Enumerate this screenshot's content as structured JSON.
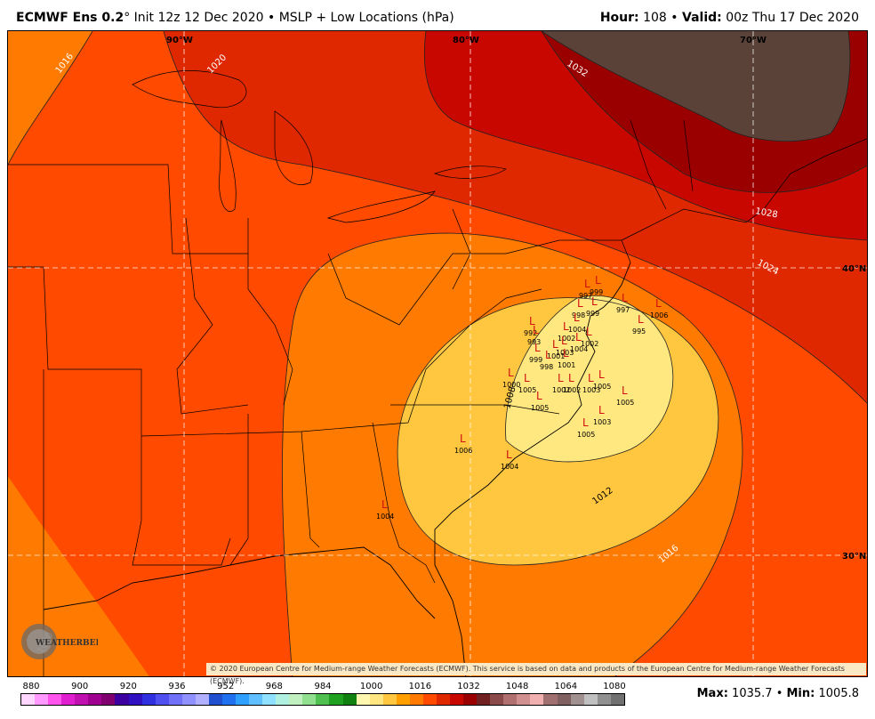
{
  "header": {
    "model": "ECMWF Ens 0.2",
    "degree": "°",
    "init_text": "Init 12z 12 Dec 2020",
    "sep": "•",
    "product": "MSLP + Low Locations (hPa)",
    "hour_label": "Hour:",
    "hour_value": "108",
    "valid_label": "Valid:",
    "valid_value": "00z Thu 17 Dec 2020"
  },
  "map": {
    "lon_labels": [
      "90°W",
      "80°W",
      "70°W"
    ],
    "lat_labels": [
      "40°N",
      "30°N"
    ],
    "isobar_labels": [
      "1016",
      "1020",
      "1032",
      "1028",
      "1024",
      "1012",
      "1008",
      "1016",
      "1020"
    ],
    "low_marker": "L",
    "lows": [
      {
        "value": "997"
      },
      {
        "value": "999"
      },
      {
        "value": "997"
      },
      {
        "value": "1006"
      },
      {
        "value": "995"
      },
      {
        "value": "998"
      },
      {
        "value": "999"
      },
      {
        "value": "992"
      },
      {
        "value": "993"
      },
      {
        "value": "1002"
      },
      {
        "value": "1001"
      },
      {
        "value": "1004"
      },
      {
        "value": "1003"
      },
      {
        "value": "999"
      },
      {
        "value": "998"
      },
      {
        "value": "1004"
      },
      {
        "value": "1001"
      },
      {
        "value": "1002"
      },
      {
        "value": "1000"
      },
      {
        "value": "1005"
      },
      {
        "value": "1005"
      },
      {
        "value": "1005"
      },
      {
        "value": "1003"
      },
      {
        "value": "1002"
      },
      {
        "value": "1005"
      },
      {
        "value": "1003"
      },
      {
        "value": "1005"
      },
      {
        "value": "1006"
      },
      {
        "value": "1004"
      },
      {
        "value": "1004"
      },
      {
        "value": "1002"
      }
    ],
    "colors": {
      "fill_1036": "#5a4238",
      "fill_1032": "#9b0000",
      "fill_1028": "#c80800",
      "fill_1024": "#e02800",
      "fill_1020": "#ff4a00",
      "fill_1016": "#ff7a00",
      "fill_1012": "#ffa000",
      "fill_1008": "#ffc640",
      "fill_1004": "#ffe880",
      "low_color": "#d01010"
    }
  },
  "copyright": "© 2020 European Centre for Medium-range Weather Forecasts (ECMWF). This service is based on data and products of the European Centre for Medium-range Weather Forecasts (ECMWF).",
  "logo": {
    "text": "WEATHERBELL"
  },
  "scale": {
    "labels": [
      "880",
      "900",
      "920",
      "936",
      "952",
      "968",
      "984",
      "1000",
      "1016",
      "1032",
      "1048",
      "1064",
      "1080"
    ],
    "colors": [
      "#ffd6ff",
      "#ff99ff",
      "#ff55ee",
      "#e020d0",
      "#c010b0",
      "#a00090",
      "#800070",
      "#3c00a0",
      "#3010c0",
      "#3030e0",
      "#5050f0",
      "#7070f8",
      "#9090ff",
      "#b0b0ff",
      "#2050d0",
      "#2070f0",
      "#30a0ff",
      "#60c0ff",
      "#90e0ff",
      "#b0f0e0",
      "#c0f0c0",
      "#90e090",
      "#50c050",
      "#20a020",
      "#108010",
      "#fff6b0",
      "#ffe680",
      "#ffc640",
      "#ffa000",
      "#ff7a00",
      "#ff4a00",
      "#e02800",
      "#c80800",
      "#9b0000",
      "#702020",
      "#8a4a4a",
      "#b07070",
      "#d09090",
      "#f0b0b0",
      "#a07070",
      "#806060",
      "#a09090",
      "#c0c0c0",
      "#909090",
      "#707070"
    ]
  },
  "stats": {
    "max_label": "Max:",
    "max_value": "1035.7",
    "sep": "•",
    "min_label": "Min:",
    "min_value": "1005.8"
  }
}
